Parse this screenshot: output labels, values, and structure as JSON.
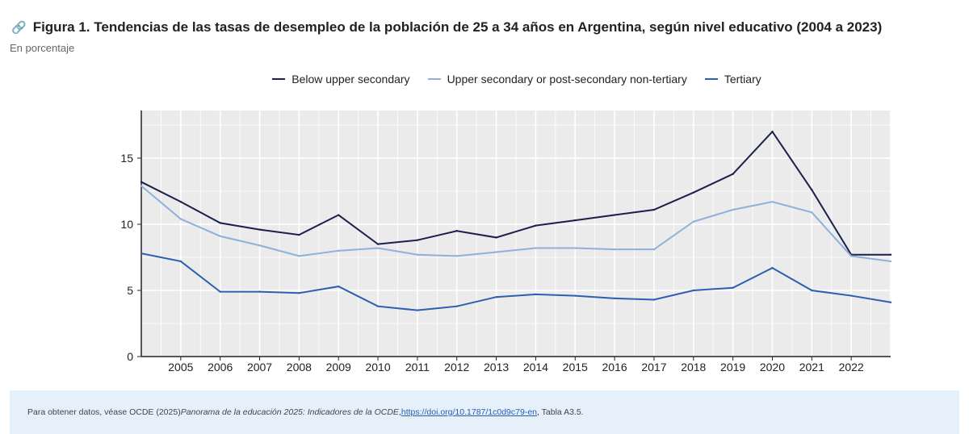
{
  "header": {
    "title": "Figura 1. Tendencias de las tasas de desempleo de la población de 25 a 34 años en Argentina, según nivel educativo (2004 a 2023)",
    "subtitle": "En porcentaje",
    "link_icon": "link-icon"
  },
  "chart_data": {
    "type": "line",
    "x": [
      2004,
      2005,
      2006,
      2007,
      2008,
      2009,
      2010,
      2011,
      2012,
      2013,
      2014,
      2015,
      2016,
      2017,
      2018,
      2019,
      2020,
      2021,
      2022,
      2023
    ],
    "xtick_labels": [
      "2005",
      "2006",
      "2007",
      "2008",
      "2009",
      "2010",
      "2011",
      "2012",
      "2013",
      "2014",
      "2015",
      "2016",
      "2017",
      "2018",
      "2019",
      "2020",
      "2021",
      "2022"
    ],
    "yticks": [
      0,
      5,
      10,
      15
    ],
    "ylim": [
      0,
      18.6
    ],
    "grid": true,
    "legend_position": "top",
    "series": [
      {
        "name": "Below upper secondary",
        "color": "#1b1f4b",
        "values": [
          13.2,
          11.7,
          10.1,
          9.6,
          9.2,
          10.7,
          8.5,
          8.8,
          9.5,
          9.0,
          9.9,
          10.3,
          10.7,
          11.1,
          12.4,
          13.8,
          17.0,
          12.6,
          7.7,
          7.7
        ]
      },
      {
        "name": "Upper secondary or post-secondary non-tertiary",
        "color": "#8fb0da",
        "values": [
          12.9,
          10.4,
          9.1,
          8.4,
          7.6,
          8.0,
          8.2,
          7.7,
          7.6,
          7.9,
          8.2,
          8.2,
          8.1,
          8.1,
          10.2,
          11.1,
          11.7,
          10.9,
          7.6,
          7.2
        ]
      },
      {
        "name": "Tertiary",
        "color": "#2d5fb0",
        "values": [
          7.8,
          7.2,
          4.9,
          4.9,
          4.8,
          5.3,
          3.8,
          3.5,
          3.8,
          4.5,
          4.7,
          4.6,
          4.4,
          4.3,
          5.0,
          5.2,
          6.7,
          5.0,
          4.6,
          4.1
        ]
      }
    ]
  },
  "footer": {
    "prefix": "Para obtener datos, véase OCDE (2025) ",
    "italic": "Panorama de la educación 2025: Indicadores de la OCDE",
    "sep": " , ",
    "link": "https://doi.org/10.1787/1c0d9c79-en",
    "suffix": " , Tabla A3.5."
  }
}
